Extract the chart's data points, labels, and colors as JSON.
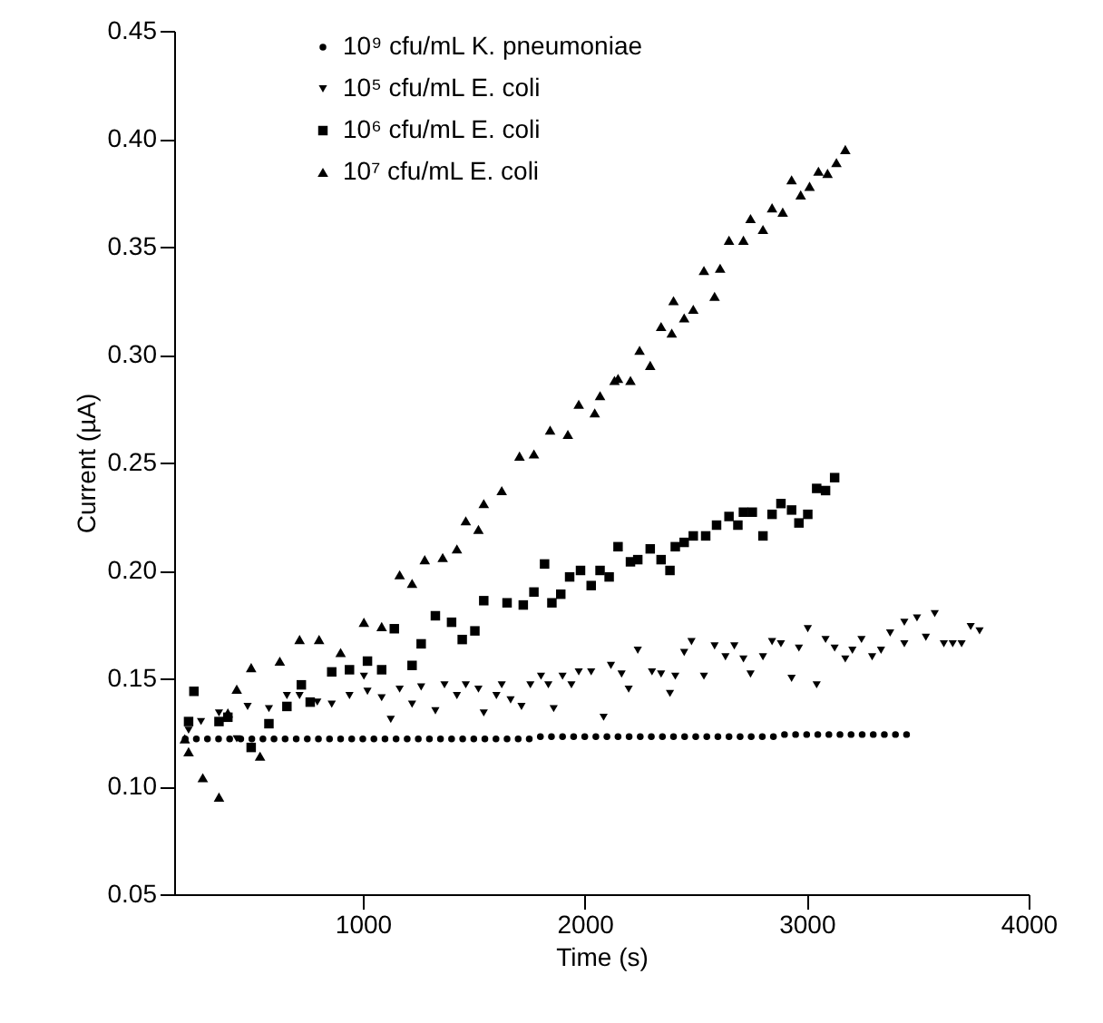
{
  "chart_data": {
    "type": "scatter",
    "xlabel": "Time (s)",
    "ylabel": "Current (µA)",
    "xlim": [
      150,
      4000
    ],
    "ylim": [
      0.05,
      0.45
    ],
    "xticks": [
      1000,
      2000,
      3000,
      4000
    ],
    "yticks": [
      0.05,
      {
        "value": 0.1,
        "label": "0.10"
      },
      0.15,
      {
        "value": 0.2,
        "label": "0.20"
      },
      0.25,
      {
        "value": 0.3,
        "label": "0.30"
      },
      0.35,
      {
        "value": 0.4,
        "label": "0.40"
      },
      0.45
    ],
    "grid": false,
    "legend": "top left",
    "series": [
      {
        "name": "10⁹ cfu/mL K. pneumoniae",
        "color": "#000000",
        "marker": "circle",
        "x": [
          200,
          250,
          300,
          350,
          400,
          450,
          500,
          550,
          600,
          650,
          700,
          750,
          800,
          850,
          900,
          950,
          1000,
          1050,
          1100,
          1150,
          1200,
          1250,
          1300,
          1350,
          1400,
          1450,
          1500,
          1550,
          1600,
          1650,
          1700,
          1750,
          1800,
          1850,
          1900,
          1950,
          2000,
          2050,
          2100,
          2150,
          2200,
          2250,
          2300,
          2350,
          2400,
          2450,
          2500,
          2550,
          2600,
          2650,
          2700,
          2750,
          2800,
          2850,
          2900,
          2950,
          3000,
          3050,
          3100,
          3150,
          3200,
          3250,
          3300,
          3350,
          3400,
          3450
        ],
        "values": [
          0.122,
          0.122,
          0.122,
          0.122,
          0.122,
          0.122,
          0.122,
          0.122,
          0.122,
          0.122,
          0.122,
          0.122,
          0.122,
          0.122,
          0.122,
          0.122,
          0.122,
          0.122,
          0.122,
          0.122,
          0.122,
          0.122,
          0.122,
          0.122,
          0.122,
          0.122,
          0.122,
          0.122,
          0.122,
          0.122,
          0.122,
          0.122,
          0.123,
          0.123,
          0.123,
          0.123,
          0.123,
          0.123,
          0.123,
          0.123,
          0.123,
          0.123,
          0.123,
          0.123,
          0.123,
          0.123,
          0.123,
          0.123,
          0.123,
          0.123,
          0.123,
          0.123,
          0.123,
          0.123,
          0.124,
          0.124,
          0.124,
          0.124,
          0.124,
          0.124,
          0.124,
          0.124,
          0.124,
          0.124,
          0.124,
          0.124
        ]
      },
      {
        "name": "10⁵ cfu/mL E. coli",
        "color": "#000000",
        "marker": "triangle-down",
        "x": [
          215,
          271,
          352,
          432,
          481,
          577,
          658,
          715,
          795,
          860,
          940,
          1005,
          1021,
          1085,
          1126,
          1166,
          1222,
          1263,
          1327,
          1368,
          1424,
          1464,
          1521,
          1545,
          1602,
          1626,
          1666,
          1715,
          1755,
          1803,
          1836,
          1860,
          1900,
          1940,
          1973,
          2029,
          2085,
          2118,
          2166,
          2198,
          2239,
          2303,
          2344,
          2384,
          2408,
          2448,
          2481,
          2537,
          2585,
          2634,
          2674,
          2715,
          2747,
          2803,
          2844,
          2884,
          2932,
          2965,
          3005,
          3045,
          3085,
          3126,
          3174,
          3206,
          3247,
          3295,
          3335,
          3376,
          3440,
          3440,
          3497,
          3537,
          3577,
          3618,
          3658,
          3698,
          3739,
          3779
        ],
        "values": [
          0.126,
          0.13,
          0.134,
          0.122,
          0.137,
          0.136,
          0.142,
          0.142,
          0.139,
          0.138,
          0.142,
          0.151,
          0.144,
          0.141,
          0.131,
          0.145,
          0.138,
          0.146,
          0.135,
          0.147,
          0.142,
          0.147,
          0.145,
          0.134,
          0.142,
          0.147,
          0.14,
          0.137,
          0.147,
          0.151,
          0.147,
          0.136,
          0.151,
          0.147,
          0.153,
          0.153,
          0.132,
          0.156,
          0.152,
          0.145,
          0.163,
          0.153,
          0.152,
          0.143,
          0.151,
          0.162,
          0.167,
          0.151,
          0.165,
          0.16,
          0.165,
          0.159,
          0.152,
          0.16,
          0.167,
          0.166,
          0.15,
          0.164,
          0.173,
          0.147,
          0.168,
          0.164,
          0.159,
          0.163,
          0.168,
          0.16,
          0.163,
          0.171,
          0.166,
          0.176,
          0.178,
          0.169,
          0.18,
          0.166,
          0.166,
          0.166,
          0.174,
          0.172
        ]
      },
      {
        "name": "10⁶ cfu/mL E. coli",
        "color": "#000000",
        "marker": "square",
        "x": [
          215,
          239,
          352,
          392,
          497,
          577,
          658,
          723,
          763,
          860,
          940,
          1021,
          1085,
          1142,
          1222,
          1263,
          1327,
          1400,
          1448,
          1505,
          1545,
          1650,
          1723,
          1771,
          1819,
          1852,
          1892,
          1932,
          1981,
          2029,
          2069,
          2110,
          2150,
          2206,
          2239,
          2295,
          2344,
          2384,
          2408,
          2448,
          2489,
          2545,
          2594,
          2650,
          2690,
          2715,
          2755,
          2803,
          2844,
          2884,
          2932,
          2965,
          3005,
          3045,
          3085,
          3126
        ],
        "values": [
          0.13,
          0.144,
          0.13,
          0.132,
          0.118,
          0.129,
          0.137,
          0.147,
          0.139,
          0.153,
          0.154,
          0.158,
          0.154,
          0.173,
          0.156,
          0.166,
          0.179,
          0.176,
          0.168,
          0.172,
          0.186,
          0.185,
          0.184,
          0.19,
          0.203,
          0.185,
          0.189,
          0.197,
          0.2,
          0.193,
          0.2,
          0.197,
          0.211,
          0.204,
          0.205,
          0.21,
          0.205,
          0.2,
          0.211,
          0.213,
          0.216,
          0.216,
          0.221,
          0.225,
          0.221,
          0.227,
          0.227,
          0.216,
          0.226,
          0.231,
          0.228,
          0.222,
          0.226,
          0.238,
          0.237,
          0.243
        ]
      },
      {
        "name": "10⁷ cfu/mL E. coli",
        "color": "#000000",
        "marker": "triangle-up",
        "x": [
          198,
          215,
          279,
          352,
          392,
          432,
          497,
          537,
          626,
          715,
          803,
          900,
          1005,
          1085,
          1166,
          1222,
          1279,
          1360,
          1424,
          1464,
          1521,
          1545,
          1626,
          1706,
          1771,
          1844,
          1924,
          1973,
          2045,
          2069,
          2134,
          2150,
          2206,
          2247,
          2295,
          2344,
          2392,
          2400,
          2448,
          2489,
          2537,
          2585,
          2610,
          2650,
          2715,
          2747,
          2803,
          2844,
          2892,
          2932,
          2973,
          3013,
          3053,
          3094,
          3134,
          3174
        ],
        "values": [
          0.122,
          0.116,
          0.104,
          0.095,
          0.134,
          0.145,
          0.155,
          0.114,
          0.158,
          0.168,
          0.168,
          0.162,
          0.176,
          0.174,
          0.198,
          0.194,
          0.205,
          0.206,
          0.21,
          0.223,
          0.219,
          0.231,
          0.237,
          0.253,
          0.254,
          0.265,
          0.263,
          0.277,
          0.273,
          0.281,
          0.288,
          0.289,
          0.288,
          0.302,
          0.295,
          0.313,
          0.31,
          0.325,
          0.317,
          0.321,
          0.339,
          0.327,
          0.34,
          0.353,
          0.353,
          0.363,
          0.358,
          0.368,
          0.366,
          0.381,
          0.374,
          0.378,
          0.385,
          0.384,
          0.389,
          0.395
        ]
      }
    ]
  }
}
